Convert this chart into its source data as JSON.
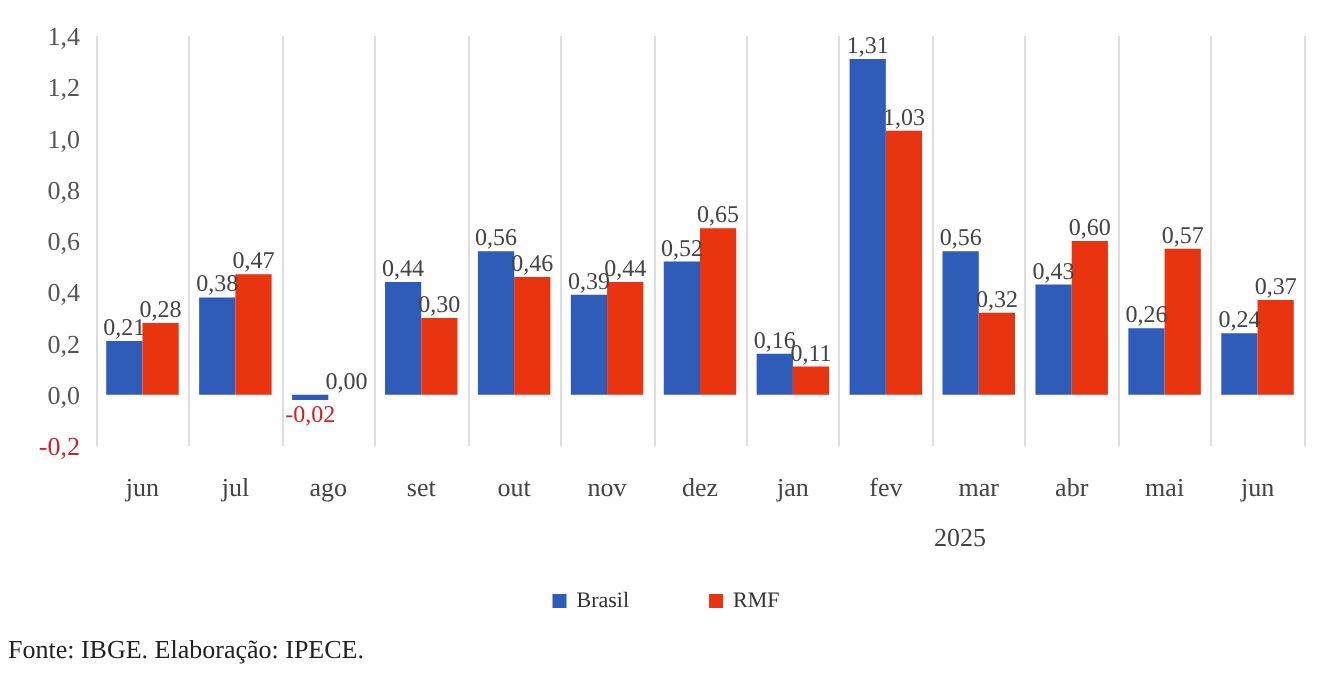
{
  "chart_data": {
    "type": "bar",
    "categories": [
      "jun",
      "jul",
      "ago",
      "set",
      "out",
      "nov",
      "dez",
      "jan",
      "fev",
      "mar",
      "abr",
      "mai",
      "jun"
    ],
    "series": [
      {
        "name": "Brasil",
        "color": "#2e5cb8",
        "values": [
          0.21,
          0.38,
          -0.02,
          0.44,
          0.56,
          0.39,
          0.52,
          0.16,
          1.31,
          0.56,
          0.43,
          0.26,
          0.24
        ],
        "value_labels": [
          "0,21",
          "0,38",
          "-0,02",
          "0,44",
          "0,56",
          "0,39",
          "0,52",
          "0,16",
          "1,31",
          "0,56",
          "0,43",
          "0,26",
          "0,24"
        ]
      },
      {
        "name": "RMF",
        "color": "#e8350f",
        "values": [
          0.28,
          0.47,
          0.0,
          0.3,
          0.46,
          0.44,
          0.65,
          0.11,
          1.03,
          0.32,
          0.6,
          0.57,
          0.37
        ],
        "value_labels": [
          "0,28",
          "0,47",
          "0,00",
          "0,30",
          "0,46",
          "0,44",
          "0,65",
          "0,11",
          "1,03",
          "0,32",
          "0,60",
          "0,57",
          "0,37"
        ]
      }
    ],
    "ylim": [
      -0.2,
      1.4
    ],
    "yticks": [
      {
        "value": -0.2,
        "label": "-0,2"
      },
      {
        "value": 0,
        "label": "0,0"
      },
      {
        "value": 0.2,
        "label": "0,2"
      },
      {
        "value": 0.4,
        "label": "0,4"
      },
      {
        "value": 0.6,
        "label": "0,6"
      },
      {
        "value": 0.8,
        "label": "0,8"
      },
      {
        "value": 1.0,
        "label": "1,0"
      },
      {
        "value": 1.2,
        "label": "1,2"
      },
      {
        "value": 1.4,
        "label": "1,4"
      }
    ],
    "grid": "x",
    "legend": "bottom",
    "annotations": [
      "2025",
      "Fonte: IBGE. Elaboração: IPECE."
    ]
  }
}
